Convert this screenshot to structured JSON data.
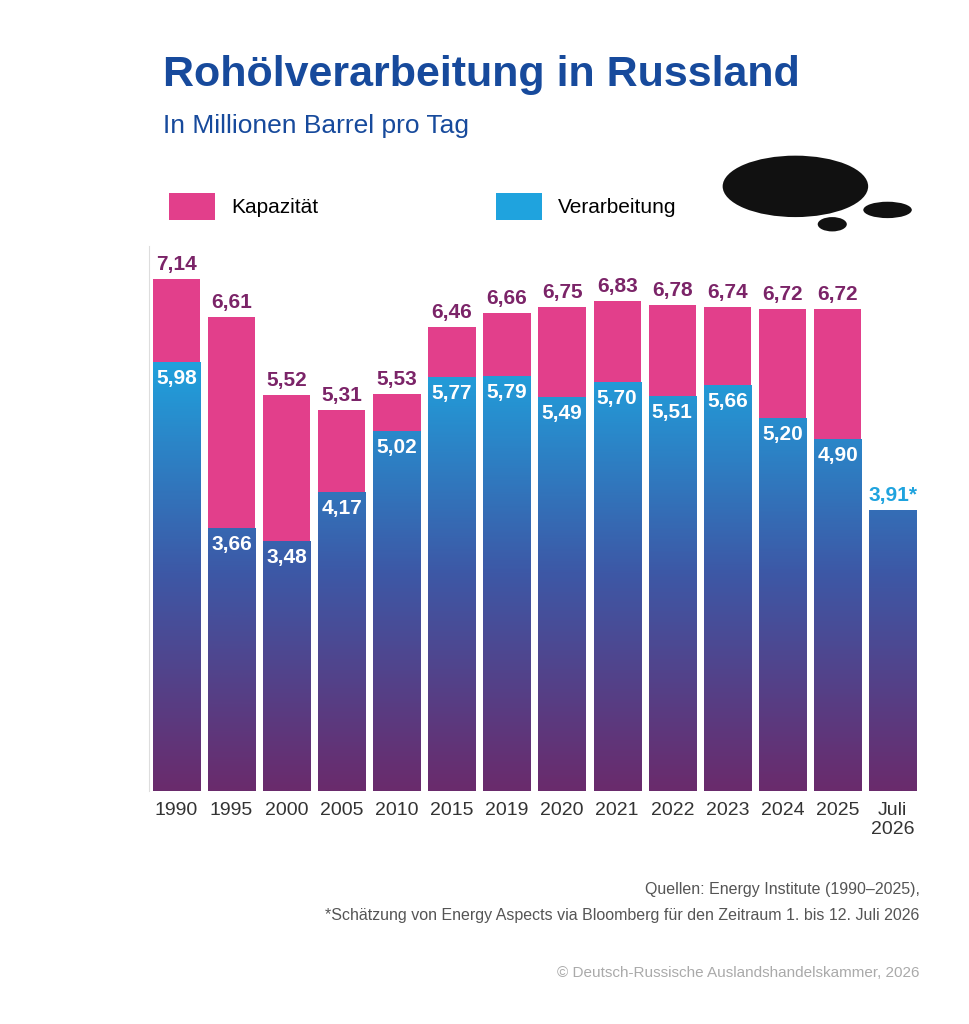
{
  "chart_data": {
    "type": "bar",
    "title": "Rohölverarbeitung in Russland",
    "subtitle": "In Millionen Barrel pro Tag",
    "categories": [
      "1990",
      "1995",
      "2000",
      "2005",
      "2010",
      "2015",
      "2019",
      "2020",
      "2021",
      "2022",
      "2023",
      "2024",
      "2025",
      "Juli\n2026"
    ],
    "series": [
      {
        "name": "Kapazität",
        "color": "#e23f8b",
        "values": [
          7.14,
          6.61,
          5.52,
          5.31,
          5.53,
          6.46,
          6.66,
          6.75,
          6.83,
          6.78,
          6.74,
          6.72,
          6.72,
          null
        ],
        "value_labels": [
          "7,14",
          "6,61",
          "5,52",
          "5,31",
          "5,53",
          "6,46",
          "6,66",
          "6,75",
          "6,83",
          "6,78",
          "6,74",
          "6,72",
          "6,72",
          null
        ]
      },
      {
        "name": "Verarbeitung",
        "color": "#1fa3de",
        "values": [
          5.98,
          3.66,
          3.48,
          4.17,
          5.02,
          5.77,
          5.79,
          5.49,
          5.7,
          5.51,
          5.66,
          5.2,
          4.9,
          3.91
        ],
        "value_labels": [
          "5,98",
          "3,66",
          "3,48",
          "4,17",
          "5,02",
          "5,77",
          "5,79",
          "5,49",
          "5,70",
          "5,51",
          "5,66",
          "5,20",
          "4,90",
          "3,91*"
        ]
      }
    ],
    "ylim": [
      0,
      7.6
    ],
    "yticks": [],
    "stacked": false,
    "data_labels": true,
    "tick_labels": "x",
    "legend": "upper left",
    "source": [
      "Quellen: Energy Institute (1990–2025),",
      "*Schätzung von Energy Aspects via Bloomberg für den Zeitraum 1. bis 12. Juli 2026"
    ],
    "copyright": "© Deutsch-Russische Auslandshandelskammer, 2026"
  }
}
